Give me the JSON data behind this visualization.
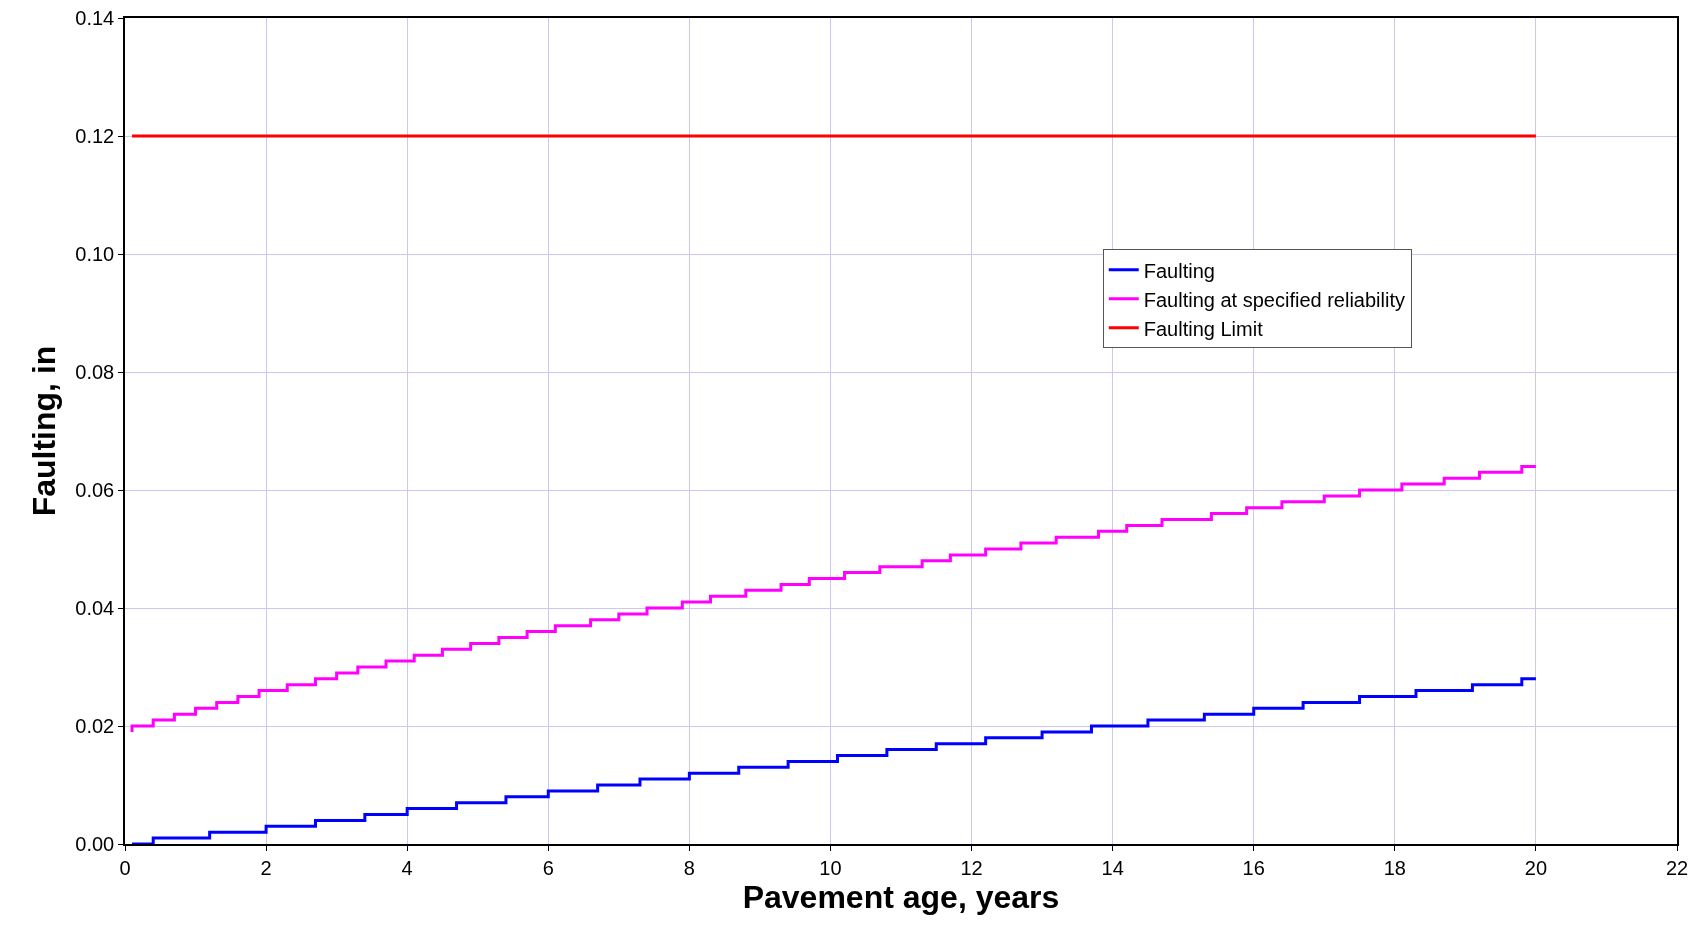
{
  "chart_data": {
    "type": "step",
    "xlabel": "Pavement age, years",
    "ylabel": "Faulting, in",
    "xlim": [
      0,
      22
    ],
    "xticks": [
      0,
      2,
      4,
      6,
      8,
      10,
      12,
      14,
      16,
      18,
      20,
      22
    ],
    "ylim": [
      0,
      0.14
    ],
    "yticks": [
      {
        "value": 0,
        "label": "0.00"
      },
      {
        "value": 0.02,
        "label": "0.02"
      },
      {
        "value": 0.04,
        "label": "0.04"
      },
      {
        "value": 0.06,
        "label": "0.06"
      },
      {
        "value": 0.08,
        "label": "0.08"
      },
      {
        "value": 0.1,
        "label": "0.10"
      },
      {
        "value": 0.12,
        "label": "0.12"
      },
      {
        "value": 0.14,
        "label": "0.14"
      }
    ],
    "grid": true,
    "legend": "right",
    "marker": "none",
    "line_style": "solid",
    "series": [
      {
        "name": "Faulting",
        "color": "#0000ff",
        "x": [
          0.1,
          0.4,
          1.2,
          2.0,
          2.7,
          3.4,
          4.0,
          4.7,
          5.4,
          6.0,
          6.7,
          7.3,
          8.0,
          8.7,
          9.4,
          10.1,
          10.8,
          11.5,
          12.2,
          13.0,
          13.7,
          14.5,
          15.3,
          16.0,
          16.7,
          17.5,
          18.3,
          19.1,
          19.8,
          20.0
        ],
        "values": [
          0,
          0.001,
          0.002,
          0.003,
          0.004,
          0.005,
          0.006,
          0.007,
          0.008,
          0.009,
          0.01,
          0.011,
          0.012,
          0.013,
          0.014,
          0.015,
          0.016,
          0.017,
          0.018,
          0.019,
          0.02,
          0.021,
          0.022,
          0.023,
          0.024,
          0.025,
          0.026,
          0.027,
          0.028,
          0.028
        ]
      },
      {
        "name": "Faulting at specified reliability",
        "color": "#ff00ff",
        "x": [
          0.1,
          0.1,
          0.4,
          0.7,
          1.0,
          1.3,
          1.6,
          1.9,
          2.3,
          2.7,
          3.0,
          3.3,
          3.7,
          4.1,
          4.5,
          4.9,
          5.3,
          5.7,
          6.1,
          6.6,
          7.0,
          7.4,
          7.9,
          8.3,
          8.8,
          9.3,
          9.7,
          10.2,
          10.7,
          11.3,
          11.7,
          12.2,
          12.7,
          13.2,
          13.8,
          14.2,
          14.7,
          15.4,
          15.9,
          16.4,
          17.0,
          17.5,
          18.1,
          18.7,
          19.2,
          19.8,
          20.0
        ],
        "values": [
          0.019,
          0.02,
          0.021,
          0.022,
          0.023,
          0.024,
          0.025,
          0.026,
          0.027,
          0.028,
          0.029,
          0.03,
          0.031,
          0.032,
          0.033,
          0.034,
          0.035,
          0.036,
          0.037,
          0.038,
          0.039,
          0.04,
          0.041,
          0.042,
          0.043,
          0.044,
          0.045,
          0.046,
          0.047,
          0.048,
          0.049,
          0.05,
          0.051,
          0.052,
          0.053,
          0.054,
          0.055,
          0.056,
          0.057,
          0.058,
          0.059,
          0.06,
          0.061,
          0.062,
          0.063,
          0.064,
          0.064
        ]
      },
      {
        "name": "Faulting Limit",
        "type": "line",
        "color": "#ff0000",
        "x": [
          0.1,
          20
        ],
        "values": [
          0.12,
          0.12
        ]
      }
    ]
  }
}
